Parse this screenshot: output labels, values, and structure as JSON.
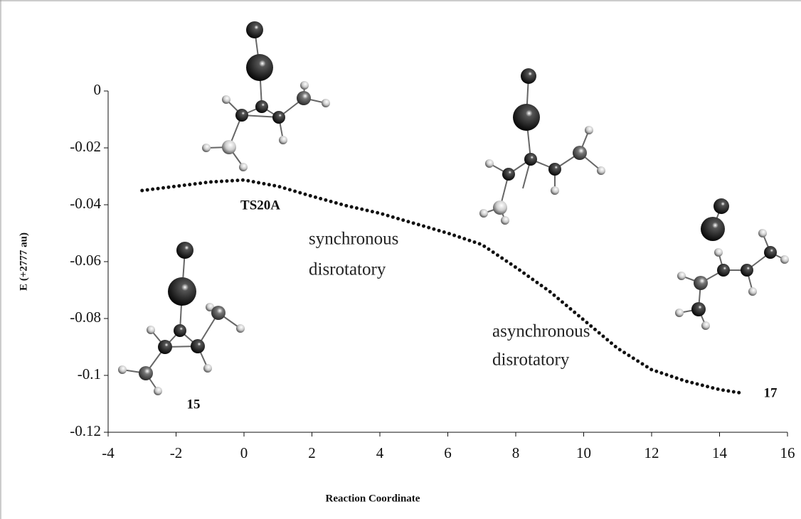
{
  "chart_data": {
    "type": "line",
    "x_label": "Reaction Coordinate",
    "y_label": "E (+2777 au)",
    "x": [
      -3,
      -2,
      -1,
      0,
      1,
      2,
      3,
      4,
      5,
      6,
      7,
      8,
      9,
      10,
      11,
      12,
      13,
      14,
      14.7
    ],
    "series": [
      {
        "color": "#111111",
        "values": [
          -0.035,
          -0.0335,
          -0.032,
          -0.0313,
          -0.0335,
          -0.037,
          -0.0403,
          -0.043,
          -0.0465,
          -0.05,
          -0.054,
          -0.062,
          -0.0705,
          -0.0805,
          -0.0905,
          -0.098,
          -0.102,
          -0.105,
          -0.1063
        ]
      }
    ],
    "xlim": [
      -4,
      16
    ],
    "xticks": [
      -4,
      -2,
      0,
      2,
      4,
      6,
      8,
      10,
      12,
      14,
      16
    ],
    "ylim": [
      -0.12,
      0
    ],
    "yticks": [
      -0.12,
      -0.1,
      -0.08,
      -0.06,
      -0.04,
      -0.02,
      0
    ],
    "grid": false,
    "annotations": [
      "TS20A",
      "synchronous",
      "disrotatory",
      "asynchronous",
      "disrotatory",
      "15",
      "17"
    ]
  }
}
